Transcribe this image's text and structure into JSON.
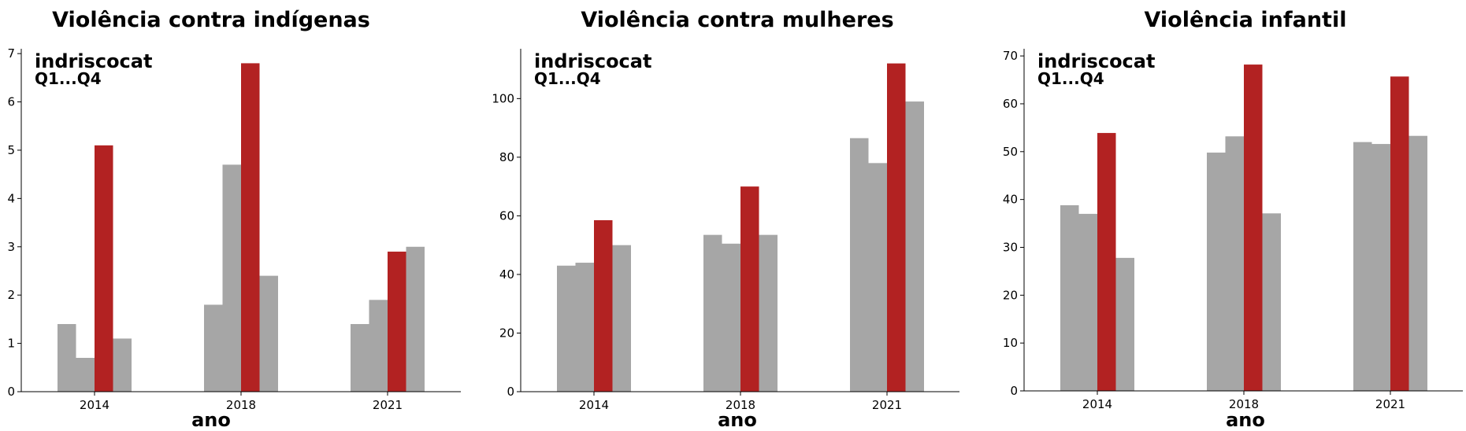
{
  "chart_data": [
    {
      "type": "bar",
      "title": "Violência contra indígenas",
      "xlabel": "ano",
      "ylabel": "",
      "categories": [
        "2014",
        "2018",
        "2021"
      ],
      "ylim": [
        0,
        7.1
      ],
      "yticks": [
        0,
        1,
        2,
        3,
        4,
        5,
        6,
        7
      ],
      "annotation": [
        "indriscocat",
        "Q1...Q4"
      ],
      "highlight_index": 2,
      "series": [
        {
          "values": [
            1.4,
            1.8,
            1.4
          ]
        },
        {
          "values": [
            0.7,
            4.7,
            1.9
          ]
        },
        {
          "values": [
            5.1,
            6.8,
            2.9
          ]
        },
        {
          "values": [
            1.1,
            2.4,
            3.0
          ]
        }
      ]
    },
    {
      "type": "bar",
      "title": "Violência contra mulheres",
      "xlabel": "ano",
      "ylabel": "",
      "categories": [
        "2014",
        "2018",
        "2021"
      ],
      "ylim": [
        0,
        117
      ],
      "yticks": [
        0,
        20,
        40,
        60,
        80,
        100
      ],
      "annotation": [
        "indriscocat",
        "Q1...Q4"
      ],
      "highlight_index": 2,
      "series": [
        {
          "values": [
            43,
            53.5,
            86.5
          ]
        },
        {
          "values": [
            44,
            50.5,
            78
          ]
        },
        {
          "values": [
            58.5,
            70,
            112
          ]
        },
        {
          "values": [
            50,
            53.5,
            99
          ]
        }
      ]
    },
    {
      "type": "bar",
      "title": "Violência infantil",
      "xlabel": "ano",
      "ylabel": "",
      "categories": [
        "2014",
        "2018",
        "2021"
      ],
      "ylim": [
        0,
        71.5
      ],
      "yticks": [
        0,
        10,
        20,
        30,
        40,
        50,
        60,
        70
      ],
      "annotation": [
        "indriscocat",
        "Q1...Q4"
      ],
      "highlight_index": 2,
      "series": [
        {
          "values": [
            38.8,
            49.8,
            52
          ]
        },
        {
          "values": [
            37,
            53.2,
            51.6
          ]
        },
        {
          "values": [
            53.9,
            68.2,
            65.7
          ]
        },
        {
          "values": [
            27.8,
            37.1,
            53.3
          ]
        }
      ]
    }
  ],
  "colors": {
    "bar_default": "#a6a6a6",
    "bar_highlight": "#b22222",
    "axis": "#000000"
  }
}
